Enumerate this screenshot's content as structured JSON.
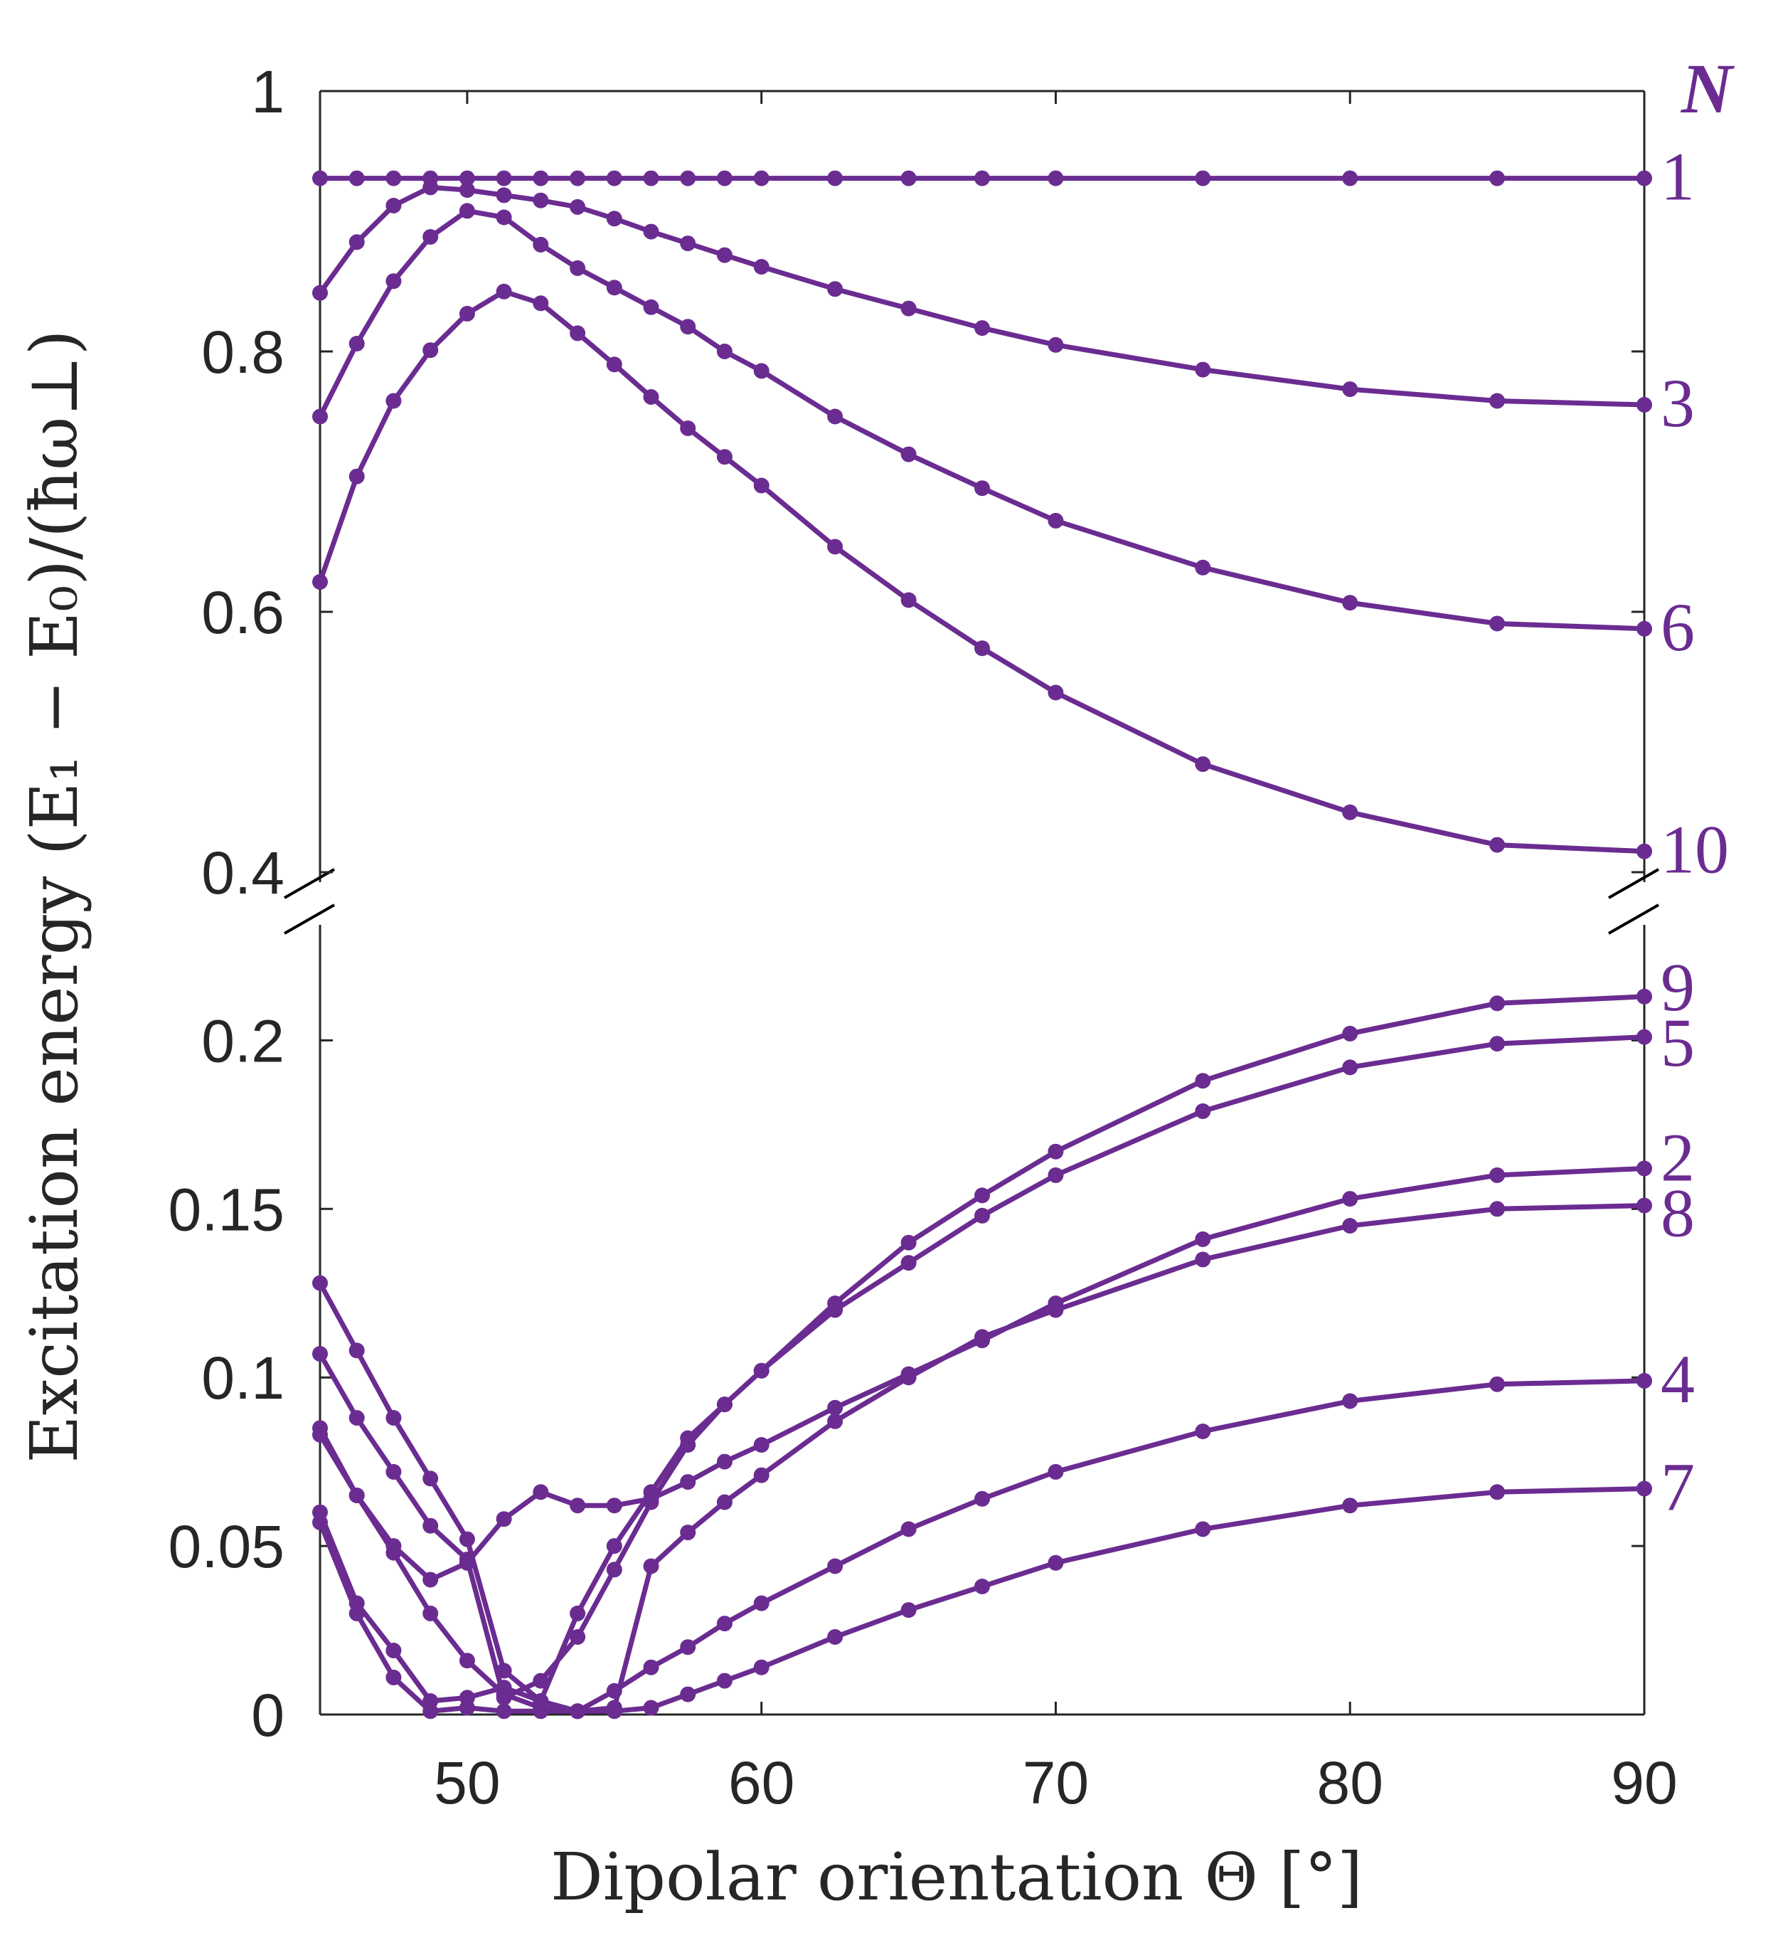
{
  "colors": {
    "series": "#6b2c91",
    "axis": "#262626"
  },
  "chart_data": {
    "type": "line",
    "xlabel": "Dipolar orientation Θ [°]",
    "ylabel": "Excitation energy (E₁ − E₀)/(ħω⊥)",
    "xlim": [
      45,
      90
    ],
    "xticks": [
      "50",
      "60",
      "70",
      "80",
      "90"
    ],
    "yticks_upper": [
      "1",
      "0.8",
      "0.6",
      "0.4"
    ],
    "yticks_lower": [
      "0.2",
      "0.15",
      "0.1",
      "0.05",
      "0"
    ],
    "ylim_upper": [
      0.4,
      1.0
    ],
    "ylim_lower": [
      0.0,
      0.21
    ],
    "broken_axis": true,
    "legend_header": "N",
    "grid": false,
    "x": [
      45,
      46.25,
      47.5,
      48.75,
      50,
      51.25,
      52.5,
      53.75,
      55,
      56.25,
      57.5,
      58.75,
      60,
      62.5,
      65,
      67.5,
      70,
      75,
      80,
      85,
      90
    ],
    "series": [
      {
        "name": "1",
        "panel": "upper",
        "values": [
          0.933,
          0.933,
          0.933,
          0.933,
          0.933,
          0.933,
          0.933,
          0.933,
          0.933,
          0.933,
          0.933,
          0.933,
          0.933,
          0.933,
          0.933,
          0.933,
          0.933,
          0.933,
          0.933,
          0.933,
          0.933
        ]
      },
      {
        "name": "3",
        "panel": "upper",
        "values": [
          0.845,
          0.884,
          0.912,
          0.926,
          0.924,
          0.92,
          0.916,
          0.911,
          0.902,
          0.892,
          0.883,
          0.874,
          0.865,
          0.848,
          0.833,
          0.818,
          0.805,
          0.786,
          0.771,
          0.762,
          0.759
        ]
      },
      {
        "name": "6",
        "panel": "upper",
        "values": [
          0.75,
          0.806,
          0.854,
          0.888,
          0.908,
          0.903,
          0.882,
          0.864,
          0.849,
          0.834,
          0.819,
          0.8,
          0.785,
          0.75,
          0.721,
          0.695,
          0.67,
          0.634,
          0.607,
          0.591,
          0.587
        ]
      },
      {
        "name": "10",
        "panel": "upper",
        "values": [
          0.623,
          0.704,
          0.762,
          0.801,
          0.829,
          0.846,
          0.837,
          0.814,
          0.79,
          0.765,
          0.741,
          0.719,
          0.697,
          0.65,
          0.609,
          0.572,
          0.538,
          0.483,
          0.446,
          0.421,
          0.416
        ]
      },
      {
        "name": "9",
        "panel": "lower",
        "values": [
          0.128,
          0.108,
          0.088,
          0.07,
          0.052,
          0.013,
          0.004,
          0.03,
          0.05,
          0.066,
          0.082,
          0.092,
          0.102,
          0.122,
          0.14,
          0.154,
          0.167,
          0.188,
          0.202,
          0.211,
          0.213
        ]
      },
      {
        "name": "5",
        "panel": "lower",
        "values": [
          0.107,
          0.088,
          0.072,
          0.056,
          0.046,
          0.005,
          0.01,
          0.023,
          0.043,
          0.063,
          0.08,
          0.092,
          0.102,
          0.12,
          0.134,
          0.148,
          0.16,
          0.179,
          0.192,
          0.199,
          0.201
        ]
      },
      {
        "name": "2",
        "panel": "lower",
        "values": [
          0.083,
          0.065,
          0.05,
          0.04,
          0.045,
          0.058,
          0.066,
          0.062,
          0.062,
          0.064,
          0.069,
          0.075,
          0.08,
          0.091,
          0.101,
          0.111,
          0.122,
          0.141,
          0.153,
          0.16,
          0.162
        ]
      },
      {
        "name": "8",
        "panel": "lower",
        "values": [
          0.085,
          0.065,
          0.048,
          0.03,
          0.016,
          0.006,
          0.002,
          0.001,
          0.002,
          0.044,
          0.054,
          0.063,
          0.071,
          0.087,
          0.1,
          0.112,
          0.12,
          0.135,
          0.145,
          0.15,
          0.151
        ]
      },
      {
        "name": "4",
        "panel": "lower",
        "values": [
          0.06,
          0.033,
          0.019,
          0.004,
          0.005,
          0.008,
          0.004,
          0.001,
          0.007,
          0.014,
          0.02,
          0.027,
          0.033,
          0.044,
          0.055,
          0.064,
          0.072,
          0.084,
          0.093,
          0.098,
          0.099
        ]
      },
      {
        "name": "7",
        "panel": "lower",
        "values": [
          0.057,
          0.03,
          0.011,
          0.001,
          0.002,
          0.001,
          0.001,
          0.001,
          0.001,
          0.002,
          0.006,
          0.01,
          0.014,
          0.023,
          0.031,
          0.038,
          0.045,
          0.055,
          0.062,
          0.066,
          0.067
        ]
      }
    ]
  }
}
